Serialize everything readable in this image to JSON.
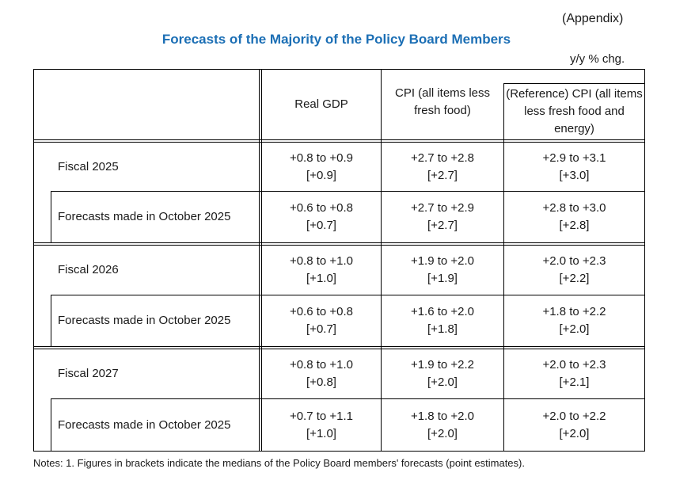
{
  "appendix": "(Appendix)",
  "title": "Forecasts of the Majority of the Policy Board Members",
  "unit": "y/y % chg.",
  "headers": {
    "gdp": "Real GDP",
    "cpi": "CPI (all items less fresh food)",
    "cpi_ref": "(Reference) CPI (all items less fresh food and energy)"
  },
  "rows": [
    {
      "label": "Fiscal 2025",
      "gdp_range": "+0.8 to +0.9",
      "gdp_median": "[+0.9]",
      "cpi_range": "+2.7 to +2.8",
      "cpi_median": "[+2.7]",
      "ref_range": "+2.9 to +3.1",
      "ref_median": "[+3.0]"
    },
    {
      "label": "Forecasts made in October 2025",
      "gdp_range": "+0.6 to +0.8",
      "gdp_median": "[+0.7]",
      "cpi_range": "+2.7 to +2.9",
      "cpi_median": "[+2.7]",
      "ref_range": "+2.8 to +3.0",
      "ref_median": "[+2.8]"
    },
    {
      "label": "Fiscal 2026",
      "gdp_range": "+0.8 to +1.0",
      "gdp_median": "[+1.0]",
      "cpi_range": "+1.9 to +2.0",
      "cpi_median": "[+1.9]",
      "ref_range": "+2.0 to +2.3",
      "ref_median": "[+2.2]"
    },
    {
      "label": "Forecasts made in October 2025",
      "gdp_range": "+0.6 to +0.8",
      "gdp_median": "[+0.7]",
      "cpi_range": "+1.6 to +2.0",
      "cpi_median": "[+1.8]",
      "ref_range": "+1.8 to +2.2",
      "ref_median": "[+2.0]"
    },
    {
      "label": "Fiscal 2027",
      "gdp_range": "+0.8 to +1.0",
      "gdp_median": "[+0.8]",
      "cpi_range": "+1.9 to +2.2",
      "cpi_median": "[+2.0]",
      "ref_range": "+2.0 to +2.3",
      "ref_median": "[+2.1]"
    },
    {
      "label": "Forecasts made in October 2025",
      "gdp_range": "+0.7 to +1.1",
      "gdp_median": "[+1.0]",
      "cpi_range": "+1.8 to +2.0",
      "cpi_median": "[+2.0]",
      "ref_range": "+2.0 to +2.2",
      "ref_median": "[+2.0]"
    }
  ],
  "note": "Notes: 1. Figures in brackets indicate the medians of the Policy Board members' forecasts (point estimates)."
}
